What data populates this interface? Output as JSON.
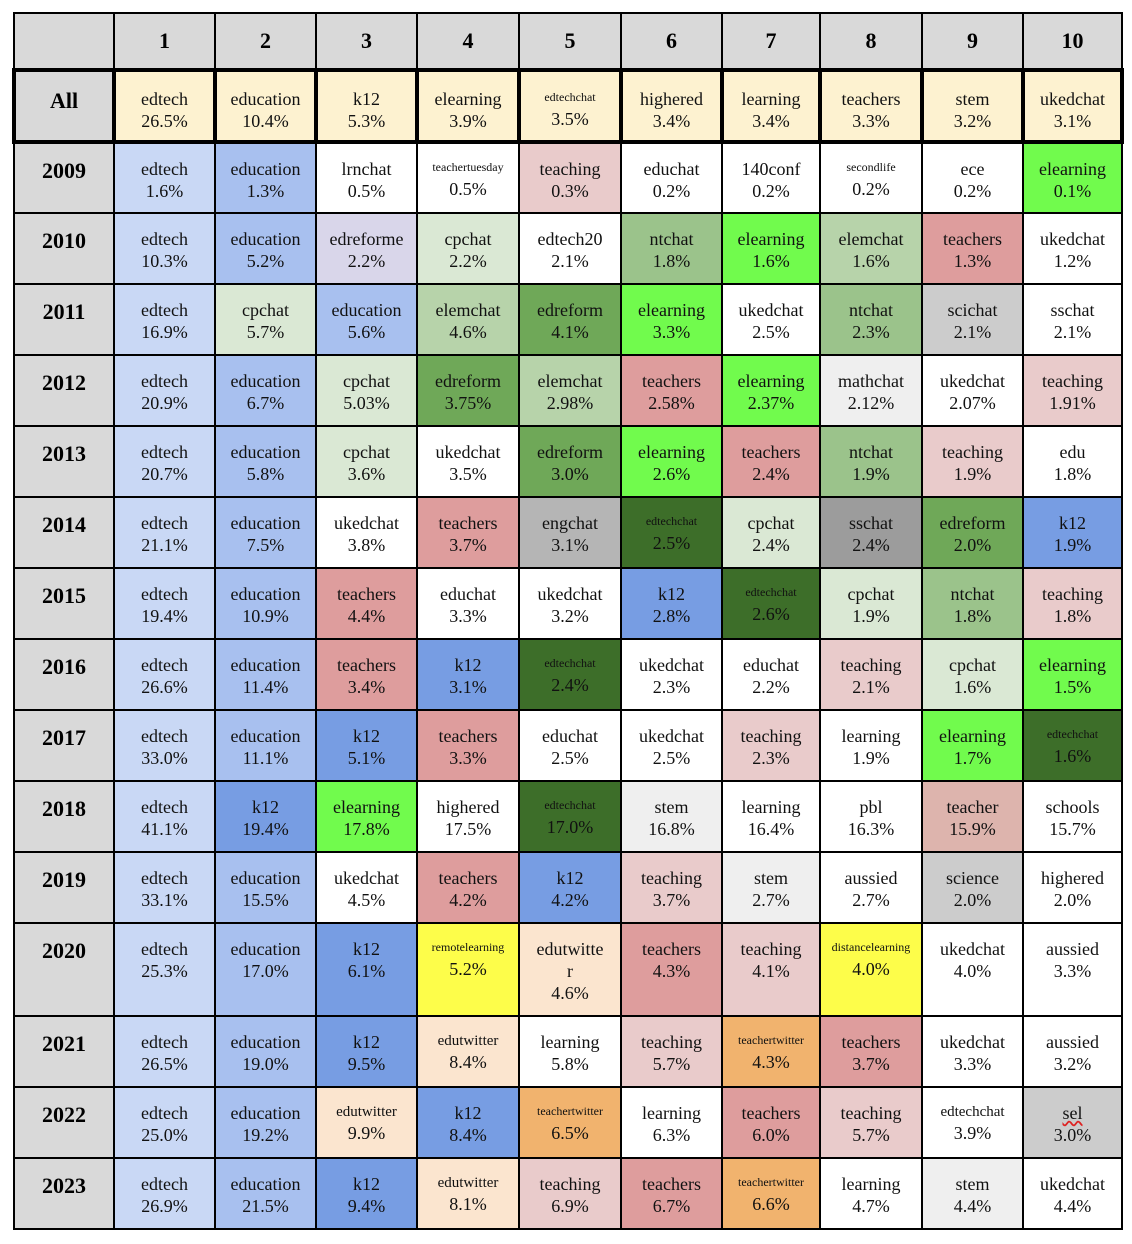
{
  "columns": [
    "",
    "1",
    "2",
    "3",
    "4",
    "5",
    "6",
    "7",
    "8",
    "9",
    "10"
  ],
  "colors": {
    "cream": "#fdf2d0",
    "lightblue": "#c9d8f5",
    "midblue": "#a8c0ef",
    "blue": "#779de3",
    "lavender": "#d9d6ea",
    "palegreen": "#dae8d4",
    "sage": "#b7d3aa",
    "olive": "#9bc38b",
    "green": "#6fa858",
    "darkgreen": "#3d6e29",
    "lime": "#71fb4d",
    "pink": "#e9cbcb",
    "rose": "#de9d9d",
    "dustyrose": "#ddb4ad",
    "lightgray": "#efefef",
    "gray": "#cccccc",
    "midgray": "#b5b5b5",
    "darkgray": "#9c9c9c",
    "yellow": "#fdfd4a",
    "peach": "#fbe5cf",
    "orange": "#f1b36e",
    "white": "#ffffff"
  },
  "rows": [
    {
      "label": "All",
      "all": true,
      "cells": [
        {
          "tag": "edtech",
          "pct": "26.5%",
          "color": "cream"
        },
        {
          "tag": "education",
          "pct": "10.4%",
          "color": "cream"
        },
        {
          "tag": "k12",
          "pct": "5.3%",
          "color": "cream"
        },
        {
          "tag": "elearning",
          "pct": "3.9%",
          "color": "cream"
        },
        {
          "tag": "edtechchat",
          "pct": "3.5%",
          "color": "cream",
          "small": true
        },
        {
          "tag": "highered",
          "pct": "3.4%",
          "color": "cream"
        },
        {
          "tag": "learning",
          "pct": "3.4%",
          "color": "cream"
        },
        {
          "tag": "teachers",
          "pct": "3.3%",
          "color": "cream"
        },
        {
          "tag": "stem",
          "pct": "3.2%",
          "color": "cream"
        },
        {
          "tag": "ukedchat",
          "pct": "3.1%",
          "color": "cream"
        }
      ]
    },
    {
      "label": "2009",
      "cells": [
        {
          "tag": "edtech",
          "pct": "1.6%",
          "color": "lightblue"
        },
        {
          "tag": "education",
          "pct": "1.3%",
          "color": "midblue"
        },
        {
          "tag": "lrnchat",
          "pct": "0.5%",
          "color": "white"
        },
        {
          "tag": "teachertuesday",
          "pct": "0.5%",
          "color": "white",
          "small": true
        },
        {
          "tag": "teaching",
          "pct": "0.3%",
          "color": "pink"
        },
        {
          "tag": "educhat",
          "pct": "0.2%",
          "color": "white"
        },
        {
          "tag": "140conf",
          "pct": "0.2%",
          "color": "white"
        },
        {
          "tag": "secondlife",
          "pct": "0.2%",
          "color": "white",
          "small": true
        },
        {
          "tag": "ece",
          "pct": "0.2%",
          "color": "white"
        },
        {
          "tag": "elearning",
          "pct": "0.1%",
          "color": "lime"
        }
      ]
    },
    {
      "label": "2010",
      "cells": [
        {
          "tag": "edtech",
          "pct": "10.3%",
          "color": "lightblue"
        },
        {
          "tag": "education",
          "pct": "5.2%",
          "color": "midblue"
        },
        {
          "tag": "edreforme",
          "pct": "2.2%",
          "color": "lavender"
        },
        {
          "tag": "cpchat",
          "pct": "2.2%",
          "color": "palegreen"
        },
        {
          "tag": "edtech20",
          "pct": "2.1%",
          "color": "white"
        },
        {
          "tag": "ntchat",
          "pct": "1.8%",
          "color": "olive"
        },
        {
          "tag": "elearning",
          "pct": "1.6%",
          "color": "lime"
        },
        {
          "tag": "elemchat",
          "pct": "1.6%",
          "color": "sage"
        },
        {
          "tag": "teachers",
          "pct": "1.3%",
          "color": "rose"
        },
        {
          "tag": "ukedchat",
          "pct": "1.2%",
          "color": "white"
        }
      ]
    },
    {
      "label": "2011",
      "cells": [
        {
          "tag": "edtech",
          "pct": "16.9%",
          "color": "lightblue"
        },
        {
          "tag": "cpchat",
          "pct": "5.7%",
          "color": "palegreen"
        },
        {
          "tag": "education",
          "pct": "5.6%",
          "color": "midblue"
        },
        {
          "tag": "elemchat",
          "pct": "4.6%",
          "color": "sage"
        },
        {
          "tag": "edreform",
          "pct": "4.1%",
          "color": "green"
        },
        {
          "tag": "elearning",
          "pct": "3.3%",
          "color": "lime"
        },
        {
          "tag": "ukedchat",
          "pct": "2.5%",
          "color": "white"
        },
        {
          "tag": "ntchat",
          "pct": "2.3%",
          "color": "olive"
        },
        {
          "tag": "scichat",
          "pct": "2.1%",
          "color": "gray"
        },
        {
          "tag": "sschat",
          "pct": "2.1%",
          "color": "white"
        }
      ]
    },
    {
      "label": "2012",
      "cells": [
        {
          "tag": "edtech",
          "pct": "20.9%",
          "color": "lightblue"
        },
        {
          "tag": "education",
          "pct": "6.7%",
          "color": "midblue"
        },
        {
          "tag": "cpchat",
          "pct": "5.03%",
          "color": "palegreen"
        },
        {
          "tag": "edreform",
          "pct": "3.75%",
          "color": "green"
        },
        {
          "tag": "elemchat",
          "pct": "2.98%",
          "color": "sage"
        },
        {
          "tag": "teachers",
          "pct": "2.58%",
          "color": "rose"
        },
        {
          "tag": "elearning",
          "pct": "2.37%",
          "color": "lime"
        },
        {
          "tag": "mathchat",
          "pct": "2.12%",
          "color": "lightgray"
        },
        {
          "tag": "ukedchat",
          "pct": "2.07%",
          "color": "white"
        },
        {
          "tag": "teaching",
          "pct": "1.91%",
          "color": "pink"
        }
      ]
    },
    {
      "label": "2013",
      "cells": [
        {
          "tag": "edtech",
          "pct": "20.7%",
          "color": "lightblue"
        },
        {
          "tag": "education",
          "pct": "5.8%",
          "color": "midblue"
        },
        {
          "tag": "cpchat",
          "pct": "3.6%",
          "color": "palegreen"
        },
        {
          "tag": "ukedchat",
          "pct": "3.5%",
          "color": "white"
        },
        {
          "tag": "edreform",
          "pct": "3.0%",
          "color": "green"
        },
        {
          "tag": "elearning",
          "pct": "2.6%",
          "color": "lime"
        },
        {
          "tag": "teachers",
          "pct": "2.4%",
          "color": "rose"
        },
        {
          "tag": "ntchat",
          "pct": "1.9%",
          "color": "olive"
        },
        {
          "tag": "teaching",
          "pct": "1.9%",
          "color": "pink"
        },
        {
          "tag": "edu",
          "pct": "1.8%",
          "color": "white"
        }
      ]
    },
    {
      "label": "2014",
      "cells": [
        {
          "tag": "edtech",
          "pct": "21.1%",
          "color": "lightblue"
        },
        {
          "tag": "education",
          "pct": "7.5%",
          "color": "midblue"
        },
        {
          "tag": "ukedchat",
          "pct": "3.8%",
          "color": "white"
        },
        {
          "tag": "teachers",
          "pct": "3.7%",
          "color": "rose"
        },
        {
          "tag": "engchat",
          "pct": "3.1%",
          "color": "midgray"
        },
        {
          "tag": "edtechchat",
          "pct": "2.5%",
          "color": "darkgreen",
          "small": true
        },
        {
          "tag": "cpchat",
          "pct": "2.4%",
          "color": "palegreen"
        },
        {
          "tag": "sschat",
          "pct": "2.4%",
          "color": "darkgray"
        },
        {
          "tag": "edreform",
          "pct": "2.0%",
          "color": "green"
        },
        {
          "tag": "k12",
          "pct": "1.9%",
          "color": "blue"
        }
      ]
    },
    {
      "label": "2015",
      "cells": [
        {
          "tag": "edtech",
          "pct": "19.4%",
          "color": "lightblue"
        },
        {
          "tag": "education",
          "pct": "10.9%",
          "color": "midblue"
        },
        {
          "tag": "teachers",
          "pct": "4.4%",
          "color": "rose"
        },
        {
          "tag": "educhat",
          "pct": "3.3%",
          "color": "white"
        },
        {
          "tag": "ukedchat",
          "pct": "3.2%",
          "color": "white"
        },
        {
          "tag": "k12",
          "pct": "2.8%",
          "color": "blue"
        },
        {
          "tag": "edtechchat",
          "pct": "2.6%",
          "color": "darkgreen",
          "small": true
        },
        {
          "tag": "cpchat",
          "pct": "1.9%",
          "color": "palegreen"
        },
        {
          "tag": "ntchat",
          "pct": "1.8%",
          "color": "olive"
        },
        {
          "tag": "teaching",
          "pct": "1.8%",
          "color": "pink"
        }
      ]
    },
    {
      "label": "2016",
      "cells": [
        {
          "tag": "edtech",
          "pct": "26.6%",
          "color": "lightblue"
        },
        {
          "tag": "education",
          "pct": "11.4%",
          "color": "midblue"
        },
        {
          "tag": "teachers",
          "pct": "3.4%",
          "color": "rose"
        },
        {
          "tag": "k12",
          "pct": "3.1%",
          "color": "blue"
        },
        {
          "tag": "edtechchat",
          "pct": "2.4%",
          "color": "darkgreen",
          "small": true
        },
        {
          "tag": "ukedchat",
          "pct": "2.3%",
          "color": "white"
        },
        {
          "tag": "educhat",
          "pct": "2.2%",
          "color": "white"
        },
        {
          "tag": "teaching",
          "pct": "2.1%",
          "color": "pink"
        },
        {
          "tag": "cpchat",
          "pct": "1.6%",
          "color": "palegreen"
        },
        {
          "tag": "elearning",
          "pct": "1.5%",
          "color": "lime"
        }
      ]
    },
    {
      "label": "2017",
      "cells": [
        {
          "tag": "edtech",
          "pct": "33.0%",
          "color": "lightblue"
        },
        {
          "tag": "education",
          "pct": "11.1%",
          "color": "midblue"
        },
        {
          "tag": "k12",
          "pct": "5.1%",
          "color": "blue"
        },
        {
          "tag": "teachers",
          "pct": "3.3%",
          "color": "rose"
        },
        {
          "tag": "educhat",
          "pct": "2.5%",
          "color": "white"
        },
        {
          "tag": "ukedchat",
          "pct": "2.5%",
          "color": "white"
        },
        {
          "tag": "teaching",
          "pct": "2.3%",
          "color": "pink"
        },
        {
          "tag": "learning",
          "pct": "1.9%",
          "color": "white"
        },
        {
          "tag": "elearning",
          "pct": "1.7%",
          "color": "lime"
        },
        {
          "tag": "edtechchat",
          "pct": "1.6%",
          "color": "darkgreen",
          "small": true
        }
      ]
    },
    {
      "label": "2018",
      "cells": [
        {
          "tag": "edtech",
          "pct": "41.1%",
          "color": "lightblue"
        },
        {
          "tag": "k12",
          "pct": "19.4%",
          "color": "blue"
        },
        {
          "tag": "elearning",
          "pct": "17.8%",
          "color": "lime"
        },
        {
          "tag": "highered",
          "pct": "17.5%",
          "color": "white"
        },
        {
          "tag": "edtechchat",
          "pct": "17.0%",
          "color": "darkgreen",
          "small": true
        },
        {
          "tag": "stem",
          "pct": "16.8%",
          "color": "lightgray"
        },
        {
          "tag": "learning",
          "pct": "16.4%",
          "color": "white"
        },
        {
          "tag": "pbl",
          "pct": "16.3%",
          "color": "white"
        },
        {
          "tag": "teacher",
          "pct": "15.9%",
          "color": "dustyrose"
        },
        {
          "tag": "schools",
          "pct": "15.7%",
          "color": "white"
        }
      ]
    },
    {
      "label": "2019",
      "cells": [
        {
          "tag": "edtech",
          "pct": "33.1%",
          "color": "lightblue"
        },
        {
          "tag": "education",
          "pct": "15.5%",
          "color": "midblue"
        },
        {
          "tag": "ukedchat",
          "pct": "4.5%",
          "color": "white"
        },
        {
          "tag": "teachers",
          "pct": "4.2%",
          "color": "rose"
        },
        {
          "tag": "k12",
          "pct": "4.2%",
          "color": "blue"
        },
        {
          "tag": "teaching",
          "pct": "3.7%",
          "color": "pink"
        },
        {
          "tag": "stem",
          "pct": "2.7%",
          "color": "lightgray"
        },
        {
          "tag": "aussied",
          "pct": "2.7%",
          "color": "white"
        },
        {
          "tag": "science",
          "pct": "2.0%",
          "color": "gray"
        },
        {
          "tag": "highered",
          "pct": "2.0%",
          "color": "white"
        }
      ]
    },
    {
      "label": "2020",
      "cells": [
        {
          "tag": "edtech",
          "pct": "25.3%",
          "color": "lightblue"
        },
        {
          "tag": "education",
          "pct": "17.0%",
          "color": "midblue"
        },
        {
          "tag": "k12",
          "pct": "6.1%",
          "color": "blue"
        },
        {
          "tag": "remotelearning",
          "pct": "5.2%",
          "color": "yellow",
          "small": true
        },
        {
          "tag": "edutwitter",
          "pct": "4.6%",
          "color": "peach",
          "wrap": true
        },
        {
          "tag": "teachers",
          "pct": "4.3%",
          "color": "rose"
        },
        {
          "tag": "teaching",
          "pct": "4.1%",
          "color": "pink"
        },
        {
          "tag": "distancelearning",
          "pct": "4.0%",
          "color": "yellow",
          "small": true
        },
        {
          "tag": "ukedchat",
          "pct": "4.0%",
          "color": "white"
        },
        {
          "tag": "aussied",
          "pct": "3.3%",
          "color": "white"
        }
      ]
    },
    {
      "label": "2021",
      "cells": [
        {
          "tag": "edtech",
          "pct": "26.5%",
          "color": "lightblue"
        },
        {
          "tag": "education",
          "pct": "19.0%",
          "color": "midblue"
        },
        {
          "tag": "k12",
          "pct": "9.5%",
          "color": "blue"
        },
        {
          "tag": "edutwitter",
          "pct": "8.4%",
          "color": "peach",
          "mid": true
        },
        {
          "tag": "learning",
          "pct": "5.8%",
          "color": "white"
        },
        {
          "tag": "teaching",
          "pct": "5.7%",
          "color": "pink"
        },
        {
          "tag": "teachertwitter",
          "pct": "4.3%",
          "color": "orange",
          "small": true
        },
        {
          "tag": "teachers",
          "pct": "3.7%",
          "color": "rose"
        },
        {
          "tag": "ukedchat",
          "pct": "3.3%",
          "color": "white"
        },
        {
          "tag": "aussied",
          "pct": "3.2%",
          "color": "white"
        }
      ]
    },
    {
      "label": "2022",
      "cells": [
        {
          "tag": "edtech",
          "pct": "25.0%",
          "color": "lightblue"
        },
        {
          "tag": "education",
          "pct": "19.2%",
          "color": "midblue"
        },
        {
          "tag": "edutwitter",
          "pct": "9.9%",
          "color": "peach",
          "mid": true
        },
        {
          "tag": "k12",
          "pct": "8.4%",
          "color": "blue"
        },
        {
          "tag": "teachertwitter",
          "pct": "6.5%",
          "color": "orange",
          "small": true
        },
        {
          "tag": "learning",
          "pct": "6.3%",
          "color": "white"
        },
        {
          "tag": "teachers",
          "pct": "6.0%",
          "color": "rose"
        },
        {
          "tag": "teaching",
          "pct": "5.7%",
          "color": "pink"
        },
        {
          "tag": "edtechchat",
          "pct": "3.9%",
          "color": "white",
          "mid": true
        },
        {
          "tag": "sel",
          "pct": "3.0%",
          "color": "gray",
          "underline": true
        }
      ]
    },
    {
      "label": "2023",
      "cells": [
        {
          "tag": "edtech",
          "pct": "26.9%",
          "color": "lightblue"
        },
        {
          "tag": "education",
          "pct": "21.5%",
          "color": "midblue"
        },
        {
          "tag": "k12",
          "pct": "9.4%",
          "color": "blue"
        },
        {
          "tag": "edutwitter",
          "pct": "8.1%",
          "color": "peach",
          "mid": true
        },
        {
          "tag": "teaching",
          "pct": "6.9%",
          "color": "pink"
        },
        {
          "tag": "teachers",
          "pct": "6.7%",
          "color": "rose"
        },
        {
          "tag": "teachertwitter",
          "pct": "6.6%",
          "color": "orange",
          "small": true
        },
        {
          "tag": "learning",
          "pct": "4.7%",
          "color": "white"
        },
        {
          "tag": "stem",
          "pct": "4.4%",
          "color": "lightgray"
        },
        {
          "tag": "ukedchat",
          "pct": "4.4%",
          "color": "white"
        }
      ]
    }
  ]
}
